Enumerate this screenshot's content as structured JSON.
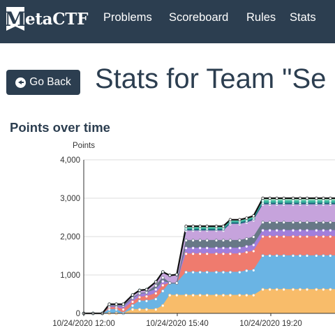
{
  "navbar": {
    "logo_letter": "M",
    "logo_text": "etaCTF",
    "items": [
      {
        "label": "Problems"
      },
      {
        "label": "Scoreboard"
      },
      {
        "label": "Rules"
      },
      {
        "label": "Stats"
      }
    ]
  },
  "back_button": {
    "label": "Go Back",
    "icon": "arrow-circle-left-icon"
  },
  "page_title": "Stats for Team \"Se",
  "section_title": "Points over time",
  "colors": {
    "nav_bg": "#2c3e50",
    "text": "#2c3e50"
  },
  "chart_data": {
    "type": "area",
    "stacked": true,
    "ylabel": "Points",
    "ylim": [
      0,
      4000
    ],
    "yticks": [
      0,
      1000,
      2000,
      3000,
      4000
    ],
    "ytick_labels": [
      "0",
      "1,000",
      "2,000",
      "3,000",
      "4,000"
    ],
    "xtick_labels": [
      "10/24/2020 12:00",
      "10/24/2020 15:40",
      "10/24/2020 19:20"
    ],
    "x": [
      0,
      0.4,
      0.8,
      1.1,
      1.4,
      1.7,
      2.1,
      2.4,
      2.7,
      3.1,
      3.4,
      3.7,
      4.0,
      4.4,
      4.7,
      5.0,
      5.3,
      5.7,
      6.0,
      6.3,
      6.7,
      7.0,
      7.3,
      7.7,
      8.0,
      8.3,
      8.6,
      9.0,
      9.3,
      9.6,
      10.0,
      10.3,
      10.6,
      11.0
    ],
    "grid": true,
    "legend": "none",
    "series": [
      {
        "color": "#f8bc6a",
        "values": [
          0,
          0,
          0,
          0,
          0,
          0,
          100,
          100,
          100,
          100,
          200,
          470,
          470,
          470,
          470,
          470,
          470,
          470,
          470,
          470,
          470,
          470,
          470,
          620,
          620,
          620,
          620,
          620,
          620,
          620,
          620,
          620,
          620,
          620
        ]
      },
      {
        "color": "#6ab4e4",
        "values": [
          0,
          0,
          0,
          100,
          100,
          0,
          100,
          220,
          220,
          270,
          380,
          320,
          320,
          600,
          600,
          600,
          600,
          600,
          600,
          600,
          600,
          640,
          650,
          880,
          880,
          880,
          880,
          880,
          880,
          880,
          880,
          880,
          880,
          880
        ]
      },
      {
        "color": "#ef7b6e",
        "values": [
          0,
          0,
          0,
          50,
          50,
          100,
          100,
          100,
          120,
          150,
          150,
          0,
          0,
          480,
          480,
          480,
          480,
          480,
          480,
          480,
          480,
          480,
          500,
          500,
          500,
          500,
          500,
          500,
          500,
          500,
          500,
          500,
          500,
          500
        ]
      },
      {
        "color": "#a17fdc",
        "values": [
          0,
          0,
          0,
          50,
          50,
          100,
          100,
          100,
          100,
          100,
          100,
          0,
          0,
          150,
          150,
          150,
          150,
          150,
          150,
          150,
          150,
          150,
          160,
          160,
          160,
          160,
          160,
          160,
          160,
          160,
          160,
          160,
          160,
          160
        ]
      },
      {
        "color": "#677886",
        "values": [
          0,
          0,
          0,
          0,
          0,
          0,
          0,
          0,
          0,
          100,
          100,
          0,
          0,
          200,
          200,
          200,
          200,
          200,
          200,
          200,
          200,
          200,
          210,
          210,
          210,
          210,
          210,
          210,
          210,
          210,
          210,
          210,
          210,
          210
        ]
      },
      {
        "color": "#c6a3dc",
        "values": [
          0,
          0,
          0,
          40,
          40,
          40,
          80,
          80,
          80,
          100,
          150,
          200,
          220,
          250,
          250,
          250,
          250,
          250,
          250,
          420,
          420,
          420,
          430,
          460,
          460,
          460,
          460,
          460,
          460,
          460,
          460,
          460,
          460,
          460
        ]
      },
      {
        "color": "#1e6a7e",
        "values": [
          0,
          0,
          0,
          0,
          0,
          0,
          0,
          0,
          0,
          0,
          0,
          0,
          0,
          40,
          40,
          40,
          40,
          40,
          40,
          40,
          40,
          40,
          40,
          40,
          40,
          40,
          40,
          40,
          40,
          40,
          40,
          40,
          40,
          40
        ]
      },
      {
        "color": "#3bb8a0",
        "values": [
          0,
          0,
          0,
          0,
          0,
          0,
          0,
          0,
          0,
          0,
          0,
          0,
          0,
          40,
          40,
          40,
          40,
          40,
          40,
          40,
          40,
          40,
          40,
          60,
          60,
          60,
          60,
          60,
          60,
          60,
          60,
          60,
          60,
          60
        ]
      },
      {
        "color": "#9bdcc0",
        "values": [
          0,
          0,
          0,
          0,
          0,
          0,
          0,
          0,
          0,
          0,
          0,
          0,
          0,
          40,
          40,
          40,
          40,
          40,
          40,
          40,
          40,
          40,
          40,
          70,
          70,
          70,
          70,
          70,
          70,
          70,
          70,
          70,
          70,
          70
        ]
      }
    ]
  }
}
